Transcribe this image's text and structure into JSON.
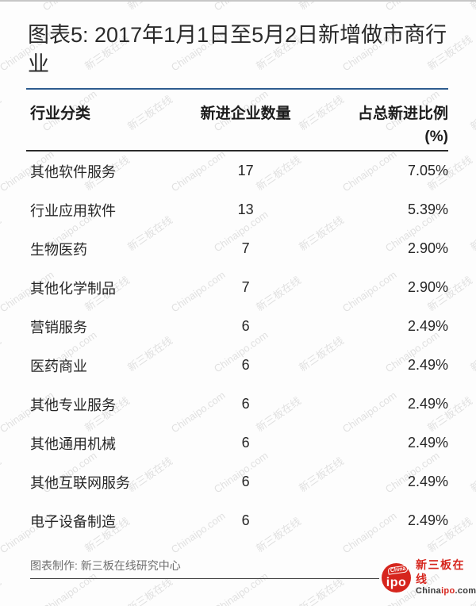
{
  "page": {
    "title": "图表5: 2017年1月1日至5月2日新增做市商行业",
    "source_note": "图表制作: 新三板在线研究中心",
    "colors": {
      "accent_blue": "#2d5c8f",
      "brand_red": "#d6251d",
      "text_dark": "#262626",
      "watermark_gray": "#d9d9d9"
    }
  },
  "watermark": {
    "texts": [
      "新三板在线",
      "Chinaipo.com"
    ]
  },
  "table": {
    "header": {
      "col1": "行业分类",
      "col2": "新进企业数量",
      "col3_line1": "占总新进比例",
      "col3_line2": "(%)"
    }
  },
  "logo": {
    "badge_top": "China",
    "badge_main": "ipo",
    "name_cn": "新三板在线",
    "url_prefix": "China",
    "url_mid": "ipo",
    "url_suffix": ".com"
  },
  "chart_data": {
    "type": "table",
    "title": "图表5: 2017年1月1日至5月2日新增做市商行业",
    "columns": [
      "行业分类",
      "新进企业数量",
      "占总新进比例(%)"
    ],
    "rows": [
      [
        "其他软件服务",
        17,
        "7.05%"
      ],
      [
        "行业应用软件",
        13,
        "5.39%"
      ],
      [
        "生物医药",
        7,
        "2.90%"
      ],
      [
        "其他化学制品",
        7,
        "2.90%"
      ],
      [
        "营销服务",
        6,
        "2.49%"
      ],
      [
        "医药商业",
        6,
        "2.49%"
      ],
      [
        "其他专业服务",
        6,
        "2.49%"
      ],
      [
        "其他通用机械",
        6,
        "2.49%"
      ],
      [
        "其他互联网服务",
        6,
        "2.49%"
      ],
      [
        "电子设备制造",
        6,
        "2.49%"
      ]
    ],
    "source_note": "图表制作: 新三板在线研究中心"
  }
}
